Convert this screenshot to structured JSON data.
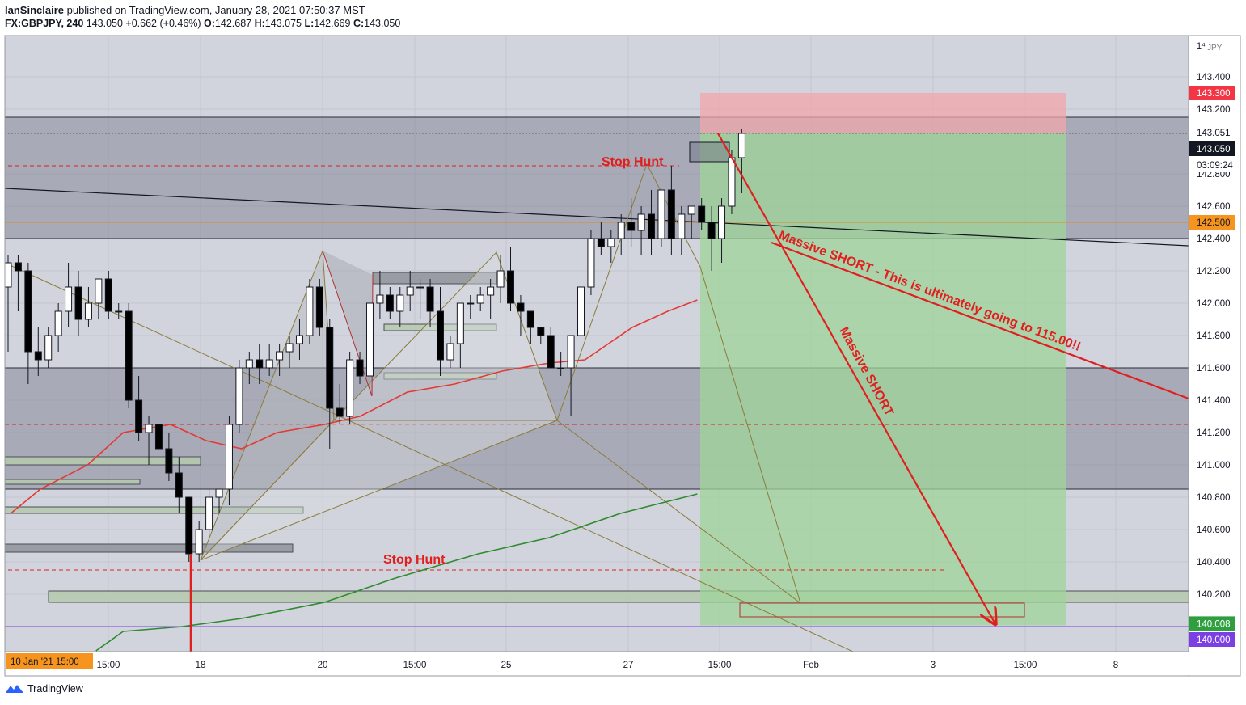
{
  "header": {
    "author": "IanSinclaire",
    "published_text": "published on TradingView.com, January 28, 2021 07:50:37 MST",
    "symbol": "FX:GBPJPY, 240",
    "last": "143.050",
    "change": "+0.662 (+0.46%)",
    "o_label": "O:",
    "o": "142.687",
    "h_label": "H:",
    "h": "143.075",
    "l_label": "L:",
    "l": "142.669",
    "c_label": "C:",
    "c": "143.050"
  },
  "footer": {
    "brand": "TradingView"
  },
  "colors": {
    "bull": "#ffffff",
    "bear": "#000000",
    "ema_fast": "#e53935",
    "ema_slow": "#2e8b2e",
    "annotation": "#e01f1f",
    "harmonic": "#8b7b3a",
    "zone": "#6f7384"
  },
  "chart_data": {
    "type": "candlestick",
    "symbol": "GBPJPY",
    "interval": "240",
    "currency_label": "JPY",
    "ylim": [
      139.85,
      143.9
    ],
    "y_ticks": [
      "143.400",
      "143.200",
      "142.800",
      "142.600",
      "142.400",
      "142.200",
      "142.000",
      "141.800",
      "141.600",
      "141.400",
      "141.200",
      "141.000",
      "140.800",
      "140.600",
      "140.400",
      "140.200"
    ],
    "x_ticks": [
      {
        "label": "15:00",
        "pos": 134
      },
      {
        "label": "18",
        "pos": 248
      },
      {
        "label": "20",
        "pos": 399
      },
      {
        "label": "15:00",
        "pos": 513
      },
      {
        "label": "25",
        "pos": 626
      },
      {
        "label": "27",
        "pos": 777
      },
      {
        "label": "15:00",
        "pos": 890
      },
      {
        "label": "Feb",
        "pos": 1003
      },
      {
        "label": "3",
        "pos": 1154
      },
      {
        "label": "15:00",
        "pos": 1268
      },
      {
        "label": "8",
        "pos": 1380
      }
    ],
    "x_start_label": "10 Jan '21  15:00",
    "price_labels": {
      "top_partial": "1⁴",
      "stop": "143.300",
      "ref": "143.051",
      "last": "143.050",
      "countdown": "03:09:24",
      "orange_level": "142.500",
      "target": "140.008",
      "purple_level": "140.000"
    },
    "candles": [
      [
        142.1,
        142.3,
        141.7,
        142.25
      ],
      [
        142.25,
        142.3,
        141.95,
        142.2
      ],
      [
        142.2,
        142.25,
        141.5,
        141.7
      ],
      [
        141.7,
        141.85,
        141.55,
        141.65
      ],
      [
        141.65,
        141.85,
        141.6,
        141.8
      ],
      [
        141.8,
        142.0,
        141.7,
        141.95
      ],
      [
        141.95,
        142.25,
        141.85,
        142.1
      ],
      [
        142.1,
        142.2,
        141.8,
        141.9
      ],
      [
        141.9,
        142.1,
        141.85,
        142.0
      ],
      [
        142.0,
        142.15,
        141.9,
        142.15
      ],
      [
        142.15,
        142.2,
        141.9,
        141.95
      ],
      [
        141.95,
        142.0,
        141.9,
        141.95
      ],
      [
        141.95,
        142.0,
        141.35,
        141.4
      ],
      [
        141.4,
        141.55,
        141.15,
        141.2
      ],
      [
        141.2,
        141.3,
        141.0,
        141.25
      ],
      [
        141.25,
        141.25,
        141.1,
        141.1
      ],
      [
        141.1,
        141.2,
        140.9,
        140.95
      ],
      [
        140.95,
        141.05,
        140.7,
        140.8
      ],
      [
        140.8,
        140.8,
        140.4,
        140.45
      ],
      [
        140.45,
        140.65,
        140.4,
        140.6
      ],
      [
        140.6,
        140.85,
        140.55,
        140.8
      ],
      [
        140.8,
        140.85,
        140.7,
        140.85
      ],
      [
        140.85,
        141.3,
        140.75,
        141.25
      ],
      [
        141.25,
        141.65,
        141.2,
        141.6
      ],
      [
        141.6,
        141.7,
        141.5,
        141.65
      ],
      [
        141.65,
        141.75,
        141.5,
        141.6
      ],
      [
        141.6,
        141.75,
        141.55,
        141.65
      ],
      [
        141.65,
        141.75,
        141.55,
        141.7
      ],
      [
        141.7,
        141.8,
        141.6,
        141.75
      ],
      [
        141.75,
        141.9,
        141.65,
        141.8
      ],
      [
        141.8,
        142.15,
        141.75,
        142.1
      ],
      [
        142.1,
        142.15,
        141.8,
        141.85
      ],
      [
        141.85,
        141.9,
        141.1,
        141.35
      ],
      [
        141.35,
        141.5,
        141.25,
        141.3
      ],
      [
        141.3,
        141.7,
        141.25,
        141.65
      ],
      [
        141.65,
        141.7,
        141.5,
        141.55
      ],
      [
        141.55,
        142.05,
        141.5,
        142.0
      ],
      [
        142.0,
        142.2,
        141.9,
        142.05
      ],
      [
        142.05,
        142.1,
        141.9,
        141.95
      ],
      [
        141.95,
        142.1,
        141.85,
        142.05
      ],
      [
        142.05,
        142.2,
        141.95,
        142.1
      ],
      [
        142.1,
        142.15,
        141.9,
        142.1
      ],
      [
        142.1,
        142.15,
        141.85,
        141.95
      ],
      [
        141.95,
        142.1,
        141.55,
        141.65
      ],
      [
        141.65,
        141.8,
        141.6,
        141.75
      ],
      [
        141.75,
        142.0,
        141.6,
        142.0
      ],
      [
        142.0,
        142.05,
        141.9,
        142.0
      ],
      [
        142.0,
        142.1,
        141.95,
        142.05
      ],
      [
        142.05,
        142.15,
        141.9,
        142.1
      ],
      [
        142.1,
        142.3,
        142.0,
        142.2
      ],
      [
        142.2,
        142.35,
        141.95,
        142.0
      ],
      [
        142.0,
        142.05,
        141.8,
        141.95
      ],
      [
        141.95,
        141.95,
        141.75,
        141.85
      ],
      [
        141.85,
        141.85,
        141.75,
        141.8
      ],
      [
        141.8,
        141.85,
        141.6,
        141.6
      ],
      [
        141.6,
        141.7,
        141.55,
        141.6
      ],
      [
        141.6,
        141.8,
        141.3,
        141.8
      ],
      [
        141.8,
        142.15,
        141.75,
        142.1
      ],
      [
        142.1,
        142.45,
        142.05,
        142.4
      ],
      [
        142.4,
        142.5,
        142.3,
        142.35
      ],
      [
        142.35,
        142.45,
        142.25,
        142.4
      ],
      [
        142.4,
        142.55,
        142.3,
        142.5
      ],
      [
        142.5,
        142.65,
        142.35,
        142.45
      ],
      [
        142.45,
        142.6,
        142.3,
        142.55
      ],
      [
        142.55,
        142.7,
        142.3,
        142.4
      ],
      [
        142.4,
        142.7,
        142.35,
        142.7
      ],
      [
        142.7,
        142.85,
        142.3,
        142.4
      ],
      [
        142.4,
        142.6,
        142.3,
        142.55
      ],
      [
        142.55,
        142.6,
        142.4,
        142.6
      ],
      [
        142.6,
        142.65,
        142.45,
        142.5
      ],
      [
        142.5,
        142.6,
        142.2,
        142.4
      ],
      [
        142.4,
        142.65,
        142.25,
        142.6
      ],
      [
        142.6,
        142.95,
        142.55,
        142.9
      ],
      [
        142.9,
        143.08,
        142.68,
        143.05
      ]
    ],
    "ema_fast_points": [
      [
        0.005,
        140.7
      ],
      [
        0.03,
        140.85
      ],
      [
        0.07,
        141.0
      ],
      [
        0.1,
        141.2
      ],
      [
        0.14,
        141.25
      ],
      [
        0.17,
        141.15
      ],
      [
        0.2,
        141.1
      ],
      [
        0.23,
        141.2
      ],
      [
        0.27,
        141.25
      ],
      [
        0.3,
        141.3
      ],
      [
        0.34,
        141.45
      ],
      [
        0.38,
        141.5
      ],
      [
        0.42,
        141.58
      ],
      [
        0.46,
        141.63
      ],
      [
        0.49,
        141.65
      ],
      [
        0.53,
        141.85
      ],
      [
        0.56,
        141.95
      ],
      [
        0.585,
        142.02
      ]
    ],
    "ema_slow_points": [
      [
        0.077,
        139.85
      ],
      [
        0.1,
        139.97
      ],
      [
        0.15,
        140.0
      ],
      [
        0.2,
        140.05
      ],
      [
        0.27,
        140.15
      ],
      [
        0.33,
        140.3
      ],
      [
        0.4,
        140.45
      ],
      [
        0.46,
        140.55
      ],
      [
        0.52,
        140.7
      ],
      [
        0.585,
        140.82
      ]
    ],
    "zones": [
      {
        "from": 142.4,
        "to": 143.15
      },
      {
        "from": 140.85,
        "to": 141.6
      }
    ],
    "levels": [
      {
        "price": 142.5,
        "color": "#e08a1e",
        "style": "solid"
      },
      {
        "price": 140.0,
        "color": "#7b3fe4",
        "style": "solid"
      },
      {
        "price": 143.051,
        "color": "#131722",
        "style": "dotted"
      },
      {
        "price": 142.85,
        "color": "#e01f1f",
        "style": "dashed"
      },
      {
        "price": 141.25,
        "color": "#e01f1f",
        "style": "dashed"
      },
      {
        "price": 140.35,
        "color": "#e01f1f",
        "style": "dashed"
      }
    ],
    "position": {
      "entry": 143.05,
      "stop": 143.3,
      "target": 140.008
    },
    "annotations": {
      "stop_hunt_top": "Stop Hunt",
      "stop_hunt_bottom": "Stop Hunt",
      "massive_short": "Massive SHORT",
      "massive_short_long": "Massive SHORT - This is ultimately going to 115.00!!"
    }
  }
}
